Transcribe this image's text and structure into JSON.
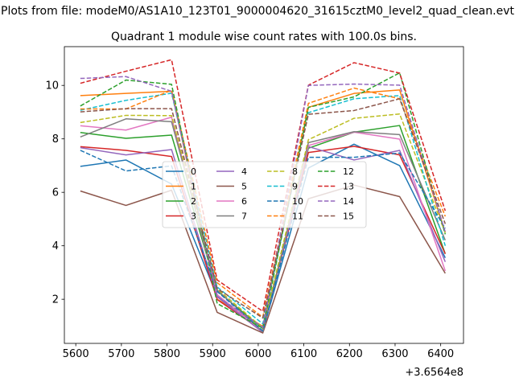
{
  "figure": {
    "suptitle": "Plots from file: modeM0/AS1A10_123T01_9000004620_31615cztM0_level2_quad_clean.evt",
    "title": "Quadrant 1 module wise count rates with 100.0s bins.",
    "offset_label": "+3.6564e8"
  },
  "chart_data": {
    "type": "line",
    "title": "Quadrant 1 module wise count rates with 100.0s bins.",
    "xlabel": "",
    "ylabel": "",
    "x_offset": 365640000,
    "x": [
      5610,
      5710,
      5810,
      5910,
      6010,
      6110,
      6210,
      6310,
      6410
    ],
    "xlim": [
      5575,
      6450
    ],
    "ylim": [
      0.35,
      11.45
    ],
    "xticks": [
      5600,
      5700,
      5800,
      5900,
      6000,
      6100,
      6200,
      6300,
      6400
    ],
    "xtick_labels": [
      "5600",
      "5700",
      "5800",
      "5900",
      "6000",
      "6100",
      "6200",
      "6300",
      "6400"
    ],
    "yticks": [
      2,
      4,
      6,
      8,
      10
    ],
    "ytick_labels": [
      "2",
      "4",
      "6",
      "8",
      "10"
    ],
    "grid": false,
    "legend_location": "center",
    "legend_columns": 4,
    "series": [
      {
        "name": "0",
        "color": "#1f77b4",
        "dashed": false,
        "values": [
          6.97,
          7.21,
          6.31,
          2.11,
          0.79,
          6.91,
          7.8,
          7.0,
          3.55
        ]
      },
      {
        "name": "1",
        "color": "#ff7f0e",
        "dashed": false,
        "values": [
          9.62,
          9.7,
          9.78,
          2.0,
          0.99,
          9.18,
          9.7,
          9.83,
          4.5
        ]
      },
      {
        "name": "2",
        "color": "#2ca02c",
        "dashed": false,
        "values": [
          8.24,
          8.02,
          8.14,
          2.31,
          0.9,
          7.65,
          8.25,
          8.5,
          3.7
        ]
      },
      {
        "name": "3",
        "color": "#d62728",
        "dashed": false,
        "values": [
          7.71,
          7.57,
          7.34,
          1.99,
          0.81,
          7.49,
          7.72,
          7.4,
          3.7
        ]
      },
      {
        "name": "4",
        "color": "#9467bd",
        "dashed": false,
        "values": [
          7.67,
          7.4,
          7.6,
          2.09,
          0.76,
          7.71,
          7.21,
          7.57,
          3.4
        ]
      },
      {
        "name": "5",
        "color": "#8c564b",
        "dashed": false,
        "values": [
          6.05,
          5.51,
          6.08,
          1.51,
          0.74,
          5.76,
          6.27,
          5.84,
          2.97
        ]
      },
      {
        "name": "6",
        "color": "#e377c2",
        "dashed": false,
        "values": [
          8.49,
          8.33,
          8.81,
          2.17,
          0.8,
          7.75,
          8.25,
          7.99,
          3.06
        ]
      },
      {
        "name": "7",
        "color": "#7f7f7f",
        "dashed": false,
        "values": [
          8.07,
          8.75,
          8.64,
          2.35,
          0.79,
          7.86,
          8.27,
          8.16,
          4.21
        ]
      },
      {
        "name": "8",
        "color": "#bcbd22",
        "dashed": true,
        "values": [
          8.61,
          8.88,
          8.87,
          2.39,
          0.93,
          7.97,
          8.77,
          8.93,
          4.48
        ]
      },
      {
        "name": "9",
        "color": "#17becf",
        "dashed": true,
        "values": [
          9.07,
          9.44,
          9.71,
          2.46,
          1.08,
          8.98,
          9.5,
          9.62,
          4.0
        ]
      },
      {
        "name": "10",
        "color": "#1f77b4",
        "dashed": true,
        "values": [
          7.57,
          6.8,
          6.99,
          2.29,
          0.82,
          7.31,
          7.31,
          7.47,
          4.65
        ]
      },
      {
        "name": "11",
        "color": "#ff7f0e",
        "dashed": true,
        "values": [
          9.12,
          9.12,
          9.82,
          2.62,
          1.33,
          9.33,
          9.9,
          9.5,
          5.1
        ]
      },
      {
        "name": "12",
        "color": "#2ca02c",
        "dashed": true,
        "values": [
          9.23,
          10.2,
          10.04,
          1.84,
          0.92,
          9.18,
          9.57,
          10.47,
          4.43
        ]
      },
      {
        "name": "13",
        "color": "#d62728",
        "dashed": true,
        "values": [
          10.08,
          10.53,
          10.96,
          2.72,
          1.55,
          10.01,
          10.85,
          10.46,
          5.31
        ]
      },
      {
        "name": "14",
        "color": "#9467bd",
        "dashed": true,
        "values": [
          10.26,
          10.33,
          9.78,
          2.11,
          0.95,
          10.0,
          10.05,
          10.01,
          4.52
        ]
      },
      {
        "name": "15",
        "color": "#8c564b",
        "dashed": true,
        "values": [
          9.01,
          9.13,
          9.13,
          2.4,
          1.3,
          8.92,
          9.06,
          9.5,
          4.82
        ]
      }
    ]
  }
}
